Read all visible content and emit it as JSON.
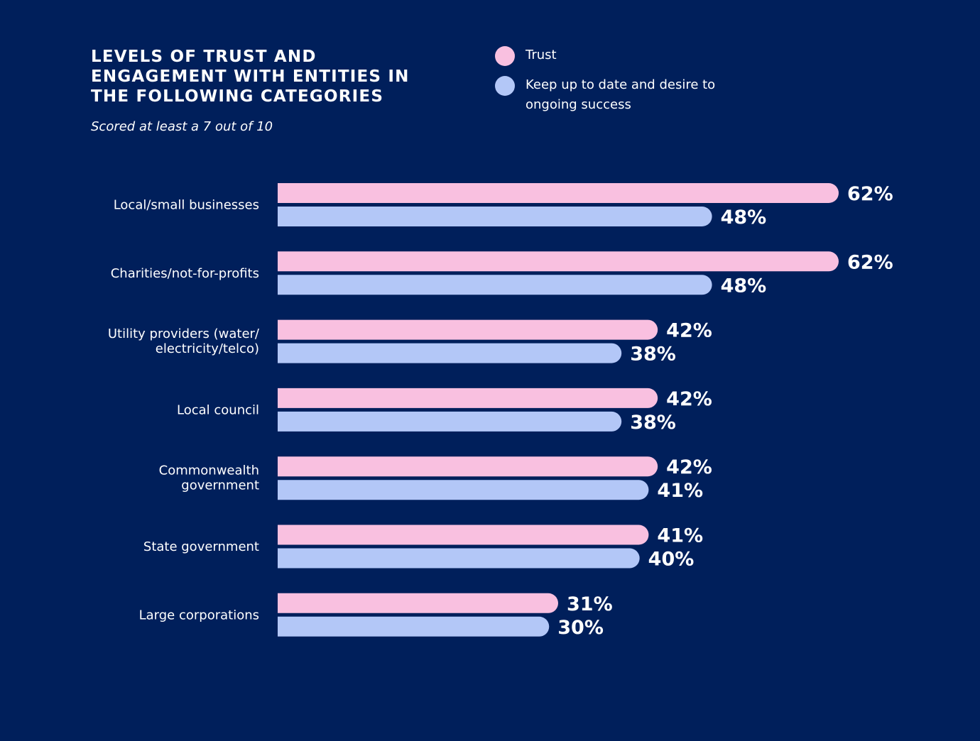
{
  "title": "LEVELS OF TRUST AND ENGAGEMENT WITH ENTITIES IN THE FOLLOWING CATEGORIES",
  "subtitle": "Scored at least a 7 out of 10",
  "legend": [
    {
      "label": "Trust",
      "color": "#f9c0e0"
    },
    {
      "label": "Keep up to date and desire to ongoing success",
      "color": "#b3c7f7"
    }
  ],
  "chart_data": {
    "type": "bar",
    "orientation": "horizontal",
    "categories": [
      "Local/small businesses",
      "Charities/not-for-profits",
      "Utility providers (water/ electricity/telco)",
      "Local council",
      "Commonwealth government",
      "State government",
      "Large corporations"
    ],
    "series": [
      {
        "name": "Trust",
        "color": "#f9c0e0",
        "values": [
          62,
          62,
          42,
          42,
          42,
          41,
          31
        ]
      },
      {
        "name": "Keep up to date and desire to ongoing success",
        "color": "#b3c7f7",
        "values": [
          48,
          48,
          38,
          38,
          41,
          40,
          30
        ]
      }
    ],
    "value_suffix": "%",
    "xlim": [
      0,
      100
    ],
    "grid": false,
    "legend_position": "top-right"
  }
}
